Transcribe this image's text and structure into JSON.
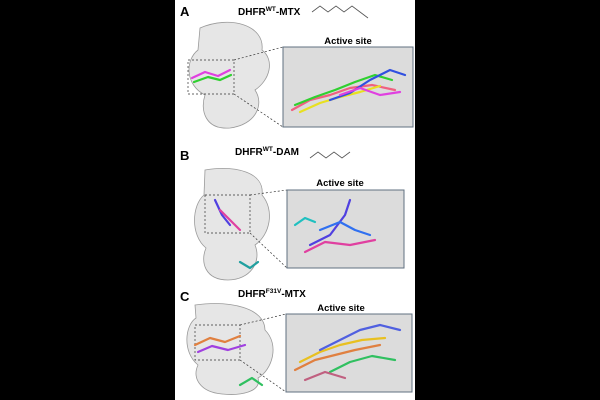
{
  "panels": [
    {
      "label": "A",
      "title": {
        "main": "DHFR",
        "sup": "WT",
        "suffix": "-MTX"
      },
      "inset_title": "Active site"
    },
    {
      "label": "B",
      "title": {
        "main": "DHFR",
        "sup": "WT",
        "suffix": "-DAM"
      },
      "inset_title": "Active site"
    },
    {
      "label": "C",
      "title": {
        "main": "DHFR",
        "sup": "F31V",
        "suffix": "-MTX"
      },
      "inset_title": "Active site"
    }
  ]
}
